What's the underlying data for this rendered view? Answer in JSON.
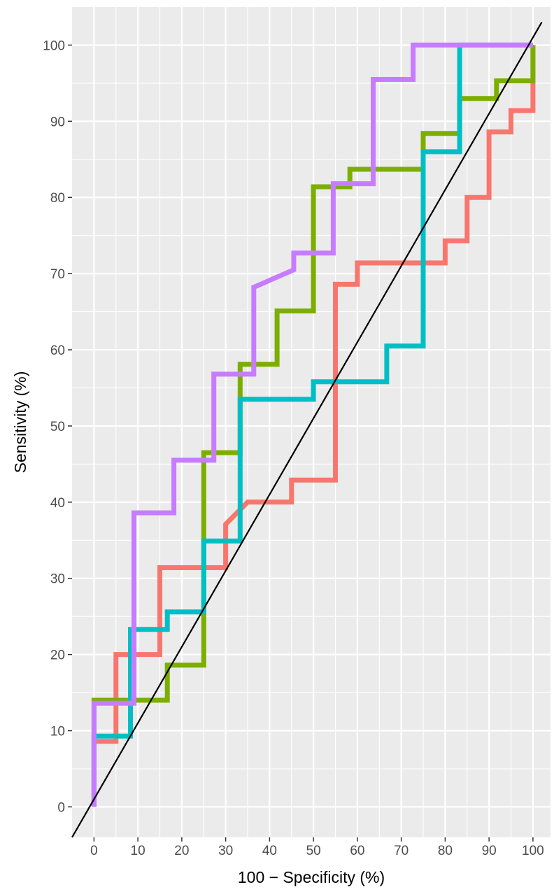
{
  "chart_data": {
    "type": "line",
    "title": "",
    "xlabel": "100 − Specificity (%)",
    "ylabel": "Sensitivity (%)",
    "xlim": [
      -5,
      104
    ],
    "ylim": [
      -4,
      105
    ],
    "x_ticks": [
      0,
      10,
      20,
      30,
      40,
      50,
      60,
      70,
      80,
      90,
      100
    ],
    "y_ticks": [
      0,
      10,
      20,
      30,
      40,
      50,
      60,
      70,
      80,
      90,
      100
    ],
    "grid": true,
    "background": "#ebebeb",
    "reference_line": {
      "from": [
        -5,
        -4
      ],
      "to": [
        102,
        103
      ],
      "color": "#000000"
    },
    "series": [
      {
        "color": "#f8766d",
        "points": [
          [
            0,
            0
          ],
          [
            0,
            8.6
          ],
          [
            5,
            8.6
          ],
          [
            5,
            20
          ],
          [
            15,
            20
          ],
          [
            15,
            31.4
          ],
          [
            30,
            31.4
          ],
          [
            30,
            37.1
          ],
          [
            35,
            40
          ],
          [
            45,
            40
          ],
          [
            45,
            42.9
          ],
          [
            55,
            42.9
          ],
          [
            55,
            68.6
          ],
          [
            60,
            68.6
          ],
          [
            60,
            71.4
          ],
          [
            80,
            71.4
          ],
          [
            80,
            74.3
          ],
          [
            85,
            74.3
          ],
          [
            85,
            80
          ],
          [
            90,
            80
          ],
          [
            90,
            88.6
          ],
          [
            95,
            88.6
          ],
          [
            95,
            91.4
          ],
          [
            100,
            91.4
          ],
          [
            100,
            100
          ]
        ]
      },
      {
        "color": "#7cae00",
        "points": [
          [
            0,
            0
          ],
          [
            0,
            14
          ],
          [
            16.7,
            14
          ],
          [
            16.7,
            18.6
          ],
          [
            25,
            18.6
          ],
          [
            25,
            46.5
          ],
          [
            33.3,
            46.5
          ],
          [
            33.3,
            58.1
          ],
          [
            41.7,
            58.1
          ],
          [
            41.7,
            65.1
          ],
          [
            50,
            65.1
          ],
          [
            50,
            81.4
          ],
          [
            58.3,
            81.4
          ],
          [
            58.3,
            83.7
          ],
          [
            75,
            83.7
          ],
          [
            75,
            88.4
          ],
          [
            83.3,
            88.4
          ],
          [
            83.3,
            93
          ],
          [
            91.7,
            93
          ],
          [
            91.7,
            95.3
          ],
          [
            100,
            95.3
          ],
          [
            100,
            100
          ]
        ]
      },
      {
        "color": "#00bfc4",
        "points": [
          [
            0,
            0
          ],
          [
            0,
            9.3
          ],
          [
            8.3,
            9.3
          ],
          [
            8.3,
            23.3
          ],
          [
            16.7,
            23.3
          ],
          [
            16.7,
            25.6
          ],
          [
            25,
            25.6
          ],
          [
            25,
            34.9
          ],
          [
            33.3,
            34.9
          ],
          [
            33.3,
            53.5
          ],
          [
            50,
            53.5
          ],
          [
            50,
            55.8
          ],
          [
            66.7,
            55.8
          ],
          [
            66.7,
            60.5
          ],
          [
            75,
            60.5
          ],
          [
            75,
            86
          ],
          [
            83.3,
            86
          ],
          [
            83.3,
            100
          ],
          [
            100,
            100
          ]
        ]
      },
      {
        "color": "#c77cff",
        "points": [
          [
            0,
            0
          ],
          [
            0,
            13.6
          ],
          [
            9.1,
            13.6
          ],
          [
            9.1,
            38.6
          ],
          [
            18.2,
            38.6
          ],
          [
            18.2,
            45.5
          ],
          [
            27.3,
            45.5
          ],
          [
            27.3,
            56.8
          ],
          [
            36.4,
            56.8
          ],
          [
            36.4,
            68.2
          ],
          [
            45.5,
            70.5
          ],
          [
            45.5,
            72.7
          ],
          [
            54.5,
            72.7
          ],
          [
            54.5,
            81.8
          ],
          [
            63.6,
            81.8
          ],
          [
            63.6,
            95.5
          ],
          [
            72.7,
            95.5
          ],
          [
            72.7,
            100
          ],
          [
            100,
            100
          ]
        ]
      }
    ]
  }
}
